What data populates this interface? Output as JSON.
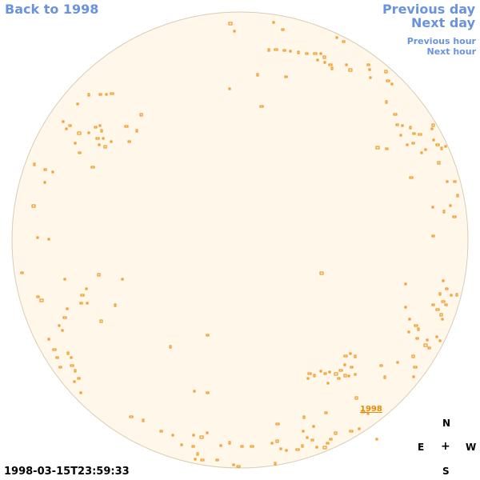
{
  "nav": {
    "back": "Back to 1998",
    "previous_day": "Previous day",
    "next_day": "Next day",
    "previous_hour": "Previous hour",
    "next_hour": "Next hour"
  },
  "timestamp": "1998-03-15T23:59:33",
  "region_label": "1998",
  "compass": {
    "n": "N",
    "e": "E",
    "center": "+",
    "w": "W",
    "s": "S"
  },
  "colors": {
    "disk_fill": "#fff8ea",
    "disk_stroke": "#d8ccb4",
    "feature": "#ee8800",
    "link": "#6a93dd"
  }
}
